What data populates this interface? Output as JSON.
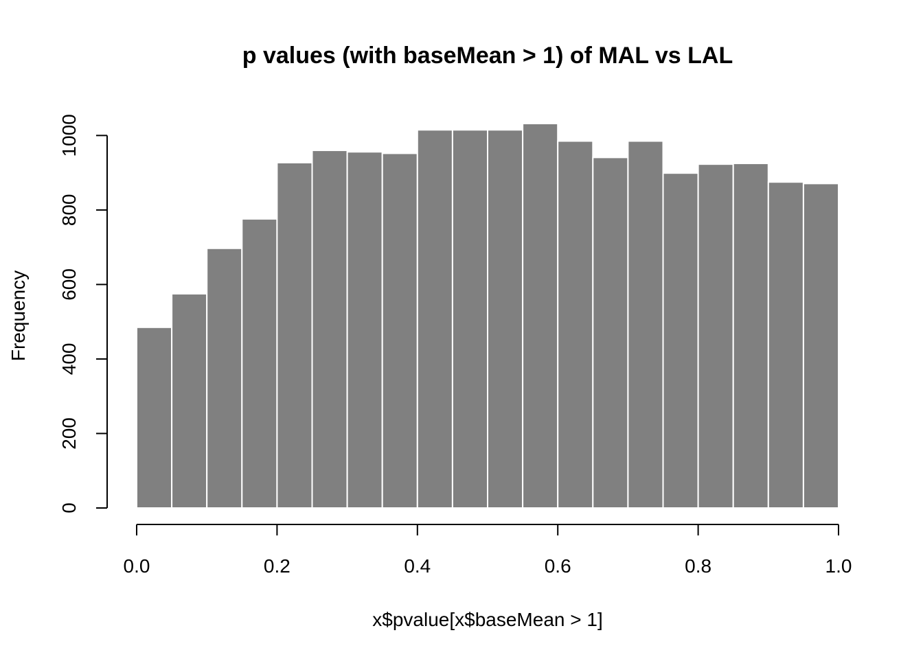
{
  "chart_data": {
    "type": "bar",
    "title": "p values (with baseMean > 1) of  MAL vs LAL",
    "xlabel": "x$pvalue[x$baseMean > 1]",
    "ylabel": "Frequency",
    "bins": [
      [
        0.0,
        0.05
      ],
      [
        0.05,
        0.1
      ],
      [
        0.1,
        0.15
      ],
      [
        0.15,
        0.2
      ],
      [
        0.2,
        0.25
      ],
      [
        0.25,
        0.3
      ],
      [
        0.3,
        0.35
      ],
      [
        0.35,
        0.4
      ],
      [
        0.4,
        0.45
      ],
      [
        0.45,
        0.5
      ],
      [
        0.5,
        0.55
      ],
      [
        0.55,
        0.6
      ],
      [
        0.6,
        0.65
      ],
      [
        0.65,
        0.7
      ],
      [
        0.7,
        0.75
      ],
      [
        0.75,
        0.8
      ],
      [
        0.8,
        0.85
      ],
      [
        0.85,
        0.9
      ],
      [
        0.9,
        0.95
      ],
      [
        0.95,
        1.0
      ]
    ],
    "values": [
      485,
      575,
      697,
      776,
      927,
      960,
      956,
      952,
      1015,
      1015,
      1015,
      1032,
      985,
      941,
      985,
      899,
      923,
      925,
      875,
      871
    ],
    "xlim": [
      0,
      1
    ],
    "ylim": [
      0,
      1032
    ],
    "x_ticks": [
      "0.0",
      "0.2",
      "0.4",
      "0.6",
      "0.8",
      "1.0"
    ],
    "y_ticks": [
      "0",
      "200",
      "400",
      "600",
      "800",
      "1000"
    ],
    "bar_color": "#808080",
    "border_color": "#ffffff",
    "grid": false
  }
}
